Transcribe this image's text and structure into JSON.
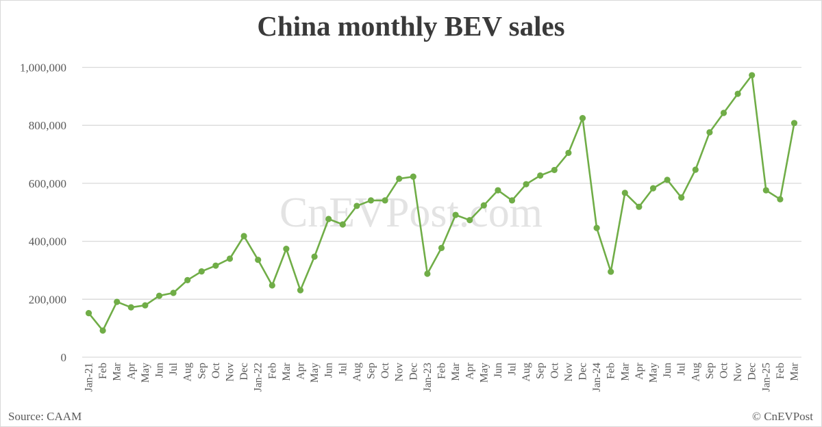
{
  "title": "China monthly BEV sales",
  "source": "Source: CAAM",
  "copyright": "© CnEVPost",
  "watermark": "CnEVPost.com",
  "colors": {
    "line": "#70ad47",
    "grid": "#d9d9d9",
    "text": "#595959",
    "title": "#3a3a3a"
  },
  "chart_data": {
    "type": "line",
    "title": "China monthly BEV sales",
    "xlabel": "",
    "ylabel": "",
    "ylim": [
      0,
      1000000
    ],
    "yticks": [
      0,
      200000,
      400000,
      600000,
      800000,
      1000000
    ],
    "ytick_labels": [
      "0",
      "200,000",
      "400,000",
      "600,000",
      "800,000",
      "1,000,000"
    ],
    "grid": true,
    "legend": "none",
    "categories": [
      "Jan-21",
      "Feb",
      "Mar",
      "Apr",
      "May",
      "Jun",
      "Jul",
      "Aug",
      "Sep",
      "Oct",
      "Nov",
      "Dec",
      "Jan-22",
      "Feb",
      "Mar",
      "Apr",
      "May",
      "Jun",
      "Jul",
      "Aug",
      "Sep",
      "Oct",
      "Nov",
      "Dec",
      "Jan-23",
      "Feb",
      "Mar",
      "Apr",
      "May",
      "Jun",
      "Jul",
      "Aug",
      "Sep",
      "Oct",
      "Nov",
      "Dec",
      "Jan-24",
      "Feb",
      "Mar",
      "Apr",
      "May",
      "Jun",
      "Jul",
      "Aug",
      "Sep",
      "Oct",
      "Nov",
      "Dec",
      "Jan-25",
      "Feb",
      "Mar"
    ],
    "series": [
      {
        "name": "BEV sales",
        "values": [
          152000,
          92000,
          191000,
          172000,
          179000,
          212000,
          222000,
          266000,
          296000,
          316000,
          340000,
          418000,
          336000,
          248000,
          374000,
          231000,
          347000,
          477000,
          458000,
          522000,
          541000,
          541000,
          616000,
          623000,
          288000,
          377000,
          491000,
          473000,
          524000,
          576000,
          541000,
          597000,
          627000,
          646000,
          705000,
          825000,
          446000,
          295000,
          567000,
          519000,
          583000,
          612000,
          551000,
          647000,
          776000,
          843000,
          909000,
          973000,
          576000,
          545000,
          808000
        ]
      }
    ]
  }
}
